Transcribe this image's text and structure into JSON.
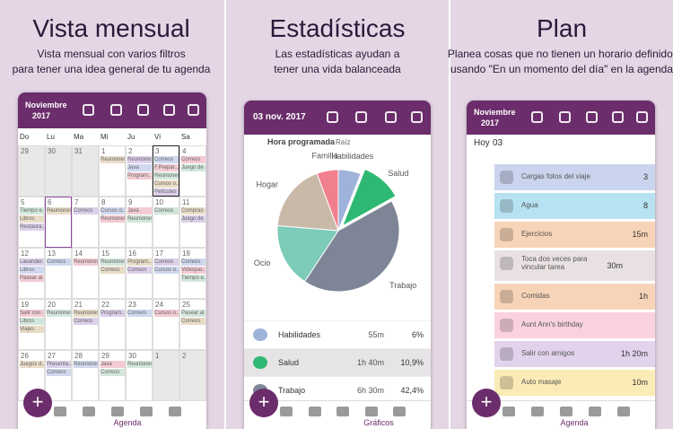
{
  "panels": [
    {
      "title": "Vista mensual",
      "subtitle": [
        "Vista mensual con varios filtros",
        "para tener una idea general de tu agenda"
      ]
    },
    {
      "title": "Estadísticas",
      "subtitle": [
        "Las estadísticas ayudan a",
        "tener una vida balanceada"
      ]
    },
    {
      "title": "Plan",
      "subtitle": [
        "Planea cosas que no tienen un horario definido,",
        "usando \"En un momento del día\" en la agenda"
      ]
    }
  ],
  "calendar": {
    "month": "Noviembre",
    "year": "2017",
    "weekdays": [
      "Do",
      "Lu",
      "Ma",
      "Mi",
      "Ju",
      "Vi",
      "Sa"
    ],
    "weeks": [
      [
        {
          "day": "29",
          "events": []
        },
        {
          "day": "30",
          "events": []
        },
        {
          "day": "31",
          "events": []
        },
        {
          "day": "1",
          "events": [
            "Reuniones"
          ]
        },
        {
          "day": "2",
          "events": [
            "Reuniones",
            "Java",
            "Program..."
          ]
        },
        {
          "day": "3",
          "events": [
            "Correos",
            "F.Prepar...",
            "Reuniones",
            "Cursos o...",
            "Películas"
          ]
        },
        {
          "day": "4",
          "events": [
            "Correos",
            "Juego de ..."
          ]
        }
      ],
      [
        {
          "day": "5",
          "events": [
            "Tiempo e...",
            "Libros",
            "Restaura..."
          ]
        },
        {
          "day": "6",
          "events": [
            "Reuniones"
          ]
        },
        {
          "day": "7",
          "events": [
            "Correos"
          ]
        },
        {
          "day": "8",
          "events": [
            "Cursos o...",
            "Reuniones"
          ]
        },
        {
          "day": "9",
          "events": [
            "Java",
            "Reuniones"
          ]
        },
        {
          "day": "10",
          "events": [
            "Correos"
          ]
        },
        {
          "day": "11",
          "events": [
            "Compras",
            "Juego de ..."
          ]
        }
      ],
      [
        {
          "day": "12",
          "events": [
            "Lavander...",
            "Libros",
            "Pasear al ..."
          ]
        },
        {
          "day": "13",
          "events": [
            "Correos"
          ]
        },
        {
          "day": "14",
          "events": [
            "Reuniones"
          ]
        },
        {
          "day": "15",
          "events": [
            "Reuniones",
            "Correos"
          ]
        },
        {
          "day": "16",
          "events": [
            "Program...",
            "Correos"
          ]
        },
        {
          "day": "17",
          "events": [
            "Correos",
            "Cursos o..."
          ]
        },
        {
          "day": "18",
          "events": [
            "Correos",
            "Videojue...",
            "Tiempo e..."
          ]
        }
      ],
      [
        {
          "day": "19",
          "events": [
            "Salir con ...",
            "Libros",
            "Viajes"
          ]
        },
        {
          "day": "20",
          "events": [
            "Reuniones"
          ]
        },
        {
          "day": "21",
          "events": [
            "Reuniones",
            "Correos"
          ]
        },
        {
          "day": "22",
          "events": [
            "Program..."
          ]
        },
        {
          "day": "23",
          "events": [
            "Correos"
          ]
        },
        {
          "day": "24",
          "events": [
            "Cursos o..."
          ]
        },
        {
          "day": "25",
          "events": [
            "Pasear al ...",
            "Correos"
          ]
        }
      ],
      [
        {
          "day": "26",
          "events": [
            "Juegos d..."
          ]
        },
        {
          "day": "27",
          "events": [
            "Presenta...",
            "Correos"
          ]
        },
        {
          "day": "28",
          "events": [
            "Reuniones"
          ]
        },
        {
          "day": "29",
          "events": [
            "Java",
            "Correos"
          ]
        },
        {
          "day": "30",
          "events": [
            "Reuniones"
          ]
        },
        {
          "day": "1",
          "events": []
        },
        {
          "day": "2",
          "events": []
        }
      ]
    ],
    "nav_label": "Agenda"
  },
  "stats": {
    "date": "03 nov. 2017",
    "heading": "Hora programada",
    "crumb": "Raíz",
    "chart_data": {
      "type": "pie",
      "categories": [
        "Habilidades",
        "Salud",
        "Trabajo",
        "Ocio",
        "Hogar",
        "Familia"
      ],
      "values": [
        6,
        10.9,
        42.4,
        17,
        18,
        5.7
      ],
      "colors": [
        "#9fb2da",
        "#2fb873",
        "#7d8596",
        "#7dcbb9",
        "#c9b9a9",
        "#f27f8e"
      ]
    },
    "rows": [
      {
        "name": "Habilidades",
        "time": "55m",
        "pct": "6%"
      },
      {
        "name": "Salud",
        "time": "1h 40m",
        "pct": "10,9%"
      },
      {
        "name": "Trabajo",
        "time": "6h 30m",
        "pct": "42,4%"
      }
    ],
    "nav_label": "Gráficos"
  },
  "plan": {
    "month": "Noviembre",
    "year": "2017",
    "today": "Hoy",
    "day": "03",
    "items": [
      {
        "name": "Cargas fotos del viaje",
        "time": "3",
        "color": "#cbd4ee"
      },
      {
        "name": "Agua",
        "time": "8",
        "color": "#b7e2f1"
      },
      {
        "name": "Ejercicios",
        "time": "15m",
        "color": "#f7d4b7"
      },
      {
        "name": "Toca dos veces para vincular tarea",
        "time": "30m",
        "color": "#e9e1e1"
      },
      {
        "name": "Comidas",
        "time": "1h",
        "color": "#f7d4b7"
      },
      {
        "name": "Aunt Ann's birthday",
        "time": null,
        "color": "#f9d2dd"
      },
      {
        "name": "Salir con amigos",
        "time": "1h 20m",
        "color": "#e2d2eb"
      },
      {
        "name": "Auto masaje",
        "time": "10m",
        "color": "#fbebb7"
      }
    ],
    "nav_label": "Agenda"
  }
}
